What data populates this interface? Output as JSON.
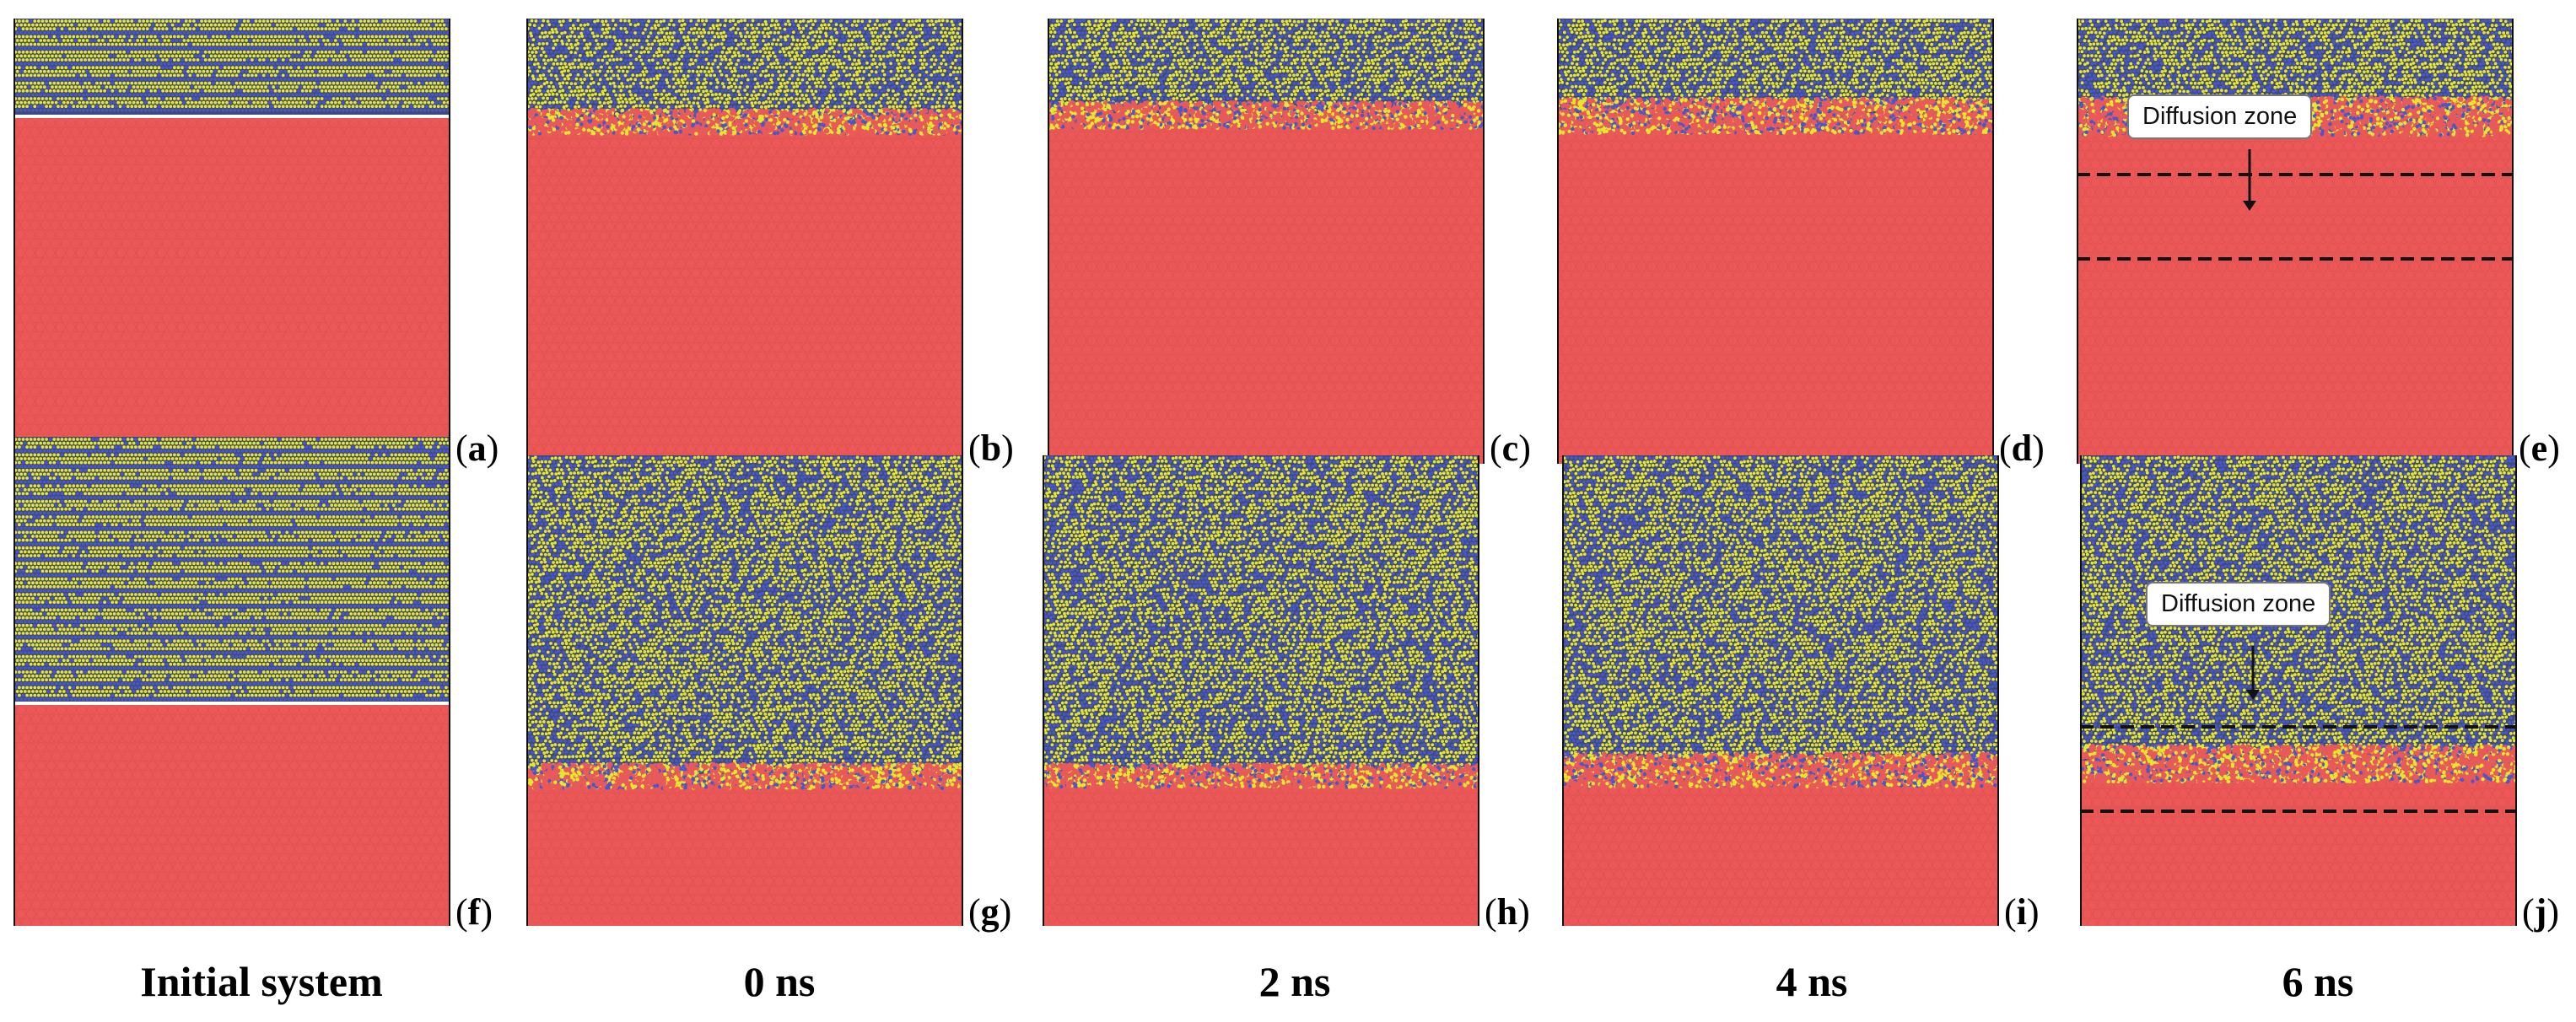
{
  "panels": [
    {
      "id": "a",
      "label": "a"
    },
    {
      "id": "b",
      "label": "b"
    },
    {
      "id": "c",
      "label": "c"
    },
    {
      "id": "d",
      "label": "d"
    },
    {
      "id": "e",
      "label": "e"
    },
    {
      "id": "f",
      "label": "f"
    },
    {
      "id": "g",
      "label": "g"
    },
    {
      "id": "h",
      "label": "h"
    },
    {
      "id": "i",
      "label": "i"
    },
    {
      "id": "j",
      "label": "j"
    }
  ],
  "columns": [
    "Initial system",
    "0 ns",
    "2 ns",
    "4 ns",
    "6 ns"
  ],
  "annotation": {
    "text": "Diffusion zone"
  },
  "colors": {
    "atom_yellow": "#e8e62a",
    "atom_blue": "#4a57c9",
    "atom_red": "#e8595a",
    "substrate_red": "#ec5858",
    "boundary_line": "#111111"
  }
}
